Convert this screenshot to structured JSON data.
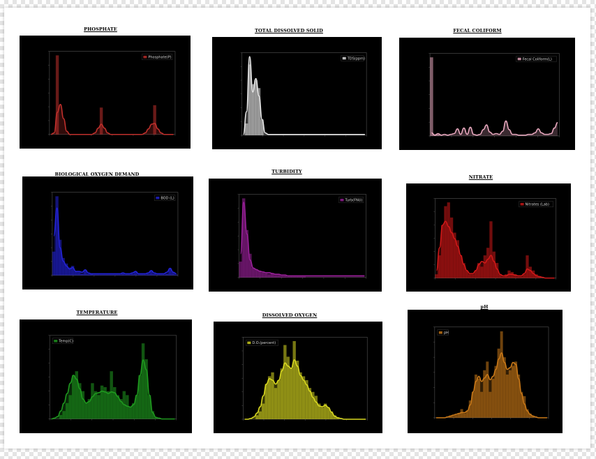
{
  "chart_data": [
    {
      "id": "phosphate",
      "type": "histogram-kde",
      "title": "PHOSPHATE",
      "legend": "Phosphate(P)",
      "legend_pos": "top-right",
      "color": "#c0302c",
      "x": [
        0,
        1,
        2,
        3,
        4,
        5,
        6,
        7,
        8,
        9,
        10,
        11,
        12,
        13,
        14,
        15,
        16,
        17,
        18,
        19,
        20,
        21,
        22,
        23,
        24,
        25,
        26,
        27,
        28,
        29,
        30,
        31,
        32,
        33,
        34,
        35,
        36,
        37,
        38,
        39
      ],
      "bars": [
        0,
        0,
        1.0,
        0,
        0,
        0,
        0,
        0,
        0,
        0,
        0,
        0,
        0,
        0,
        0,
        0,
        0.34,
        0,
        0,
        0,
        0,
        0,
        0,
        0,
        0,
        0,
        0,
        0,
        0,
        0,
        0,
        0,
        0,
        0.37,
        0,
        0,
        0,
        0,
        0,
        0
      ],
      "kde": [
        0,
        0.02,
        0.28,
        0.38,
        0.2,
        0.04,
        0,
        0,
        0,
        0,
        0,
        0,
        0,
        0,
        0.02,
        0.08,
        0.13,
        0.08,
        0.02,
        0,
        0,
        0,
        0,
        0,
        0,
        0,
        0,
        0,
        0,
        0,
        0.02,
        0.07,
        0.13,
        0.14,
        0.07,
        0.02,
        0,
        0,
        0,
        0
      ]
    },
    {
      "id": "tds",
      "type": "histogram-kde",
      "title": "TOTAL DISSOLVED SOLID",
      "legend": "TDS(ppm)",
      "legend_pos": "top-right",
      "color": "#e8e8e8",
      "x": [
        0,
        1,
        2,
        3,
        4,
        5,
        6,
        7,
        8,
        9,
        10,
        11,
        12,
        13,
        14,
        15,
        16,
        17,
        18,
        19,
        20,
        21,
        22,
        23,
        24,
        25,
        26,
        27,
        28,
        29,
        30,
        31,
        32,
        33,
        34,
        35,
        36,
        37,
        38,
        39
      ],
      "bars": [
        0,
        0.15,
        0.9,
        0.65,
        0.7,
        0.6,
        0.2,
        0,
        0,
        0,
        0,
        0,
        0,
        0,
        0,
        0,
        0,
        0,
        0,
        0,
        0,
        0,
        0,
        0,
        0,
        0,
        0,
        0,
        0,
        0,
        0,
        0,
        0,
        0,
        0,
        0,
        0,
        0,
        0,
        0
      ],
      "kde": [
        0.01,
        0.3,
        1.0,
        0.55,
        0.72,
        0.5,
        0.2,
        0.03,
        0.01,
        0.01,
        0.01,
        0.01,
        0.01,
        0.01,
        0.01,
        0.01,
        0.01,
        0.01,
        0.01,
        0.01,
        0.01,
        0.01,
        0.01,
        0.01,
        0.01,
        0.01,
        0.01,
        0.01,
        0.01,
        0.01,
        0.01,
        0.01,
        0.01,
        0.01,
        0.01,
        0.01,
        0.01,
        0.01,
        0.01,
        0.01
      ]
    },
    {
      "id": "fecal",
      "type": "histogram-kde",
      "title": "FECAL COLIFORM",
      "legend": "Fecal Coliform(L)",
      "legend_pos": "top-right",
      "color": "#e8a8be",
      "x": [
        0,
        1,
        2,
        3,
        4,
        5,
        6,
        7,
        8,
        9,
        10,
        11,
        12,
        13,
        14,
        15,
        16,
        17,
        18,
        19,
        20,
        21,
        22,
        23,
        24,
        25,
        26,
        27,
        28,
        29,
        30,
        31,
        32,
        33,
        34,
        35,
        36,
        37,
        38,
        39
      ],
      "bars": [
        1.0,
        0.02,
        0.02,
        0,
        0,
        0,
        0,
        0,
        0,
        0,
        0,
        0,
        0,
        0,
        0,
        0,
        0,
        0,
        0,
        0,
        0,
        0,
        0,
        0,
        0,
        0,
        0,
        0,
        0,
        0,
        0,
        0,
        0,
        0,
        0,
        0,
        0,
        0,
        0,
        0
      ],
      "kde": [
        0.04,
        0.01,
        0.03,
        0.01,
        0.02,
        0.01,
        0.02,
        0.03,
        0.09,
        0.02,
        0.1,
        0.02,
        0.11,
        0.02,
        0.01,
        0.02,
        0.08,
        0.14,
        0.05,
        0.02,
        0.03,
        0.02,
        0.06,
        0.19,
        0.08,
        0.02,
        0.02,
        0.01,
        0.01,
        0.01,
        0.02,
        0.02,
        0.04,
        0.09,
        0.04,
        0.02,
        0.02,
        0.03,
        0.1,
        0.17
      ]
    },
    {
      "id": "bod",
      "type": "histogram-kde",
      "title": "BIOLOGICAL OXYGEN DEMAND",
      "legend": "BOD (L)",
      "legend_pos": "top-right",
      "color": "#2323d8",
      "x": [
        0,
        1,
        2,
        3,
        4,
        5,
        6,
        7,
        8,
        9,
        10,
        11,
        12,
        13,
        14,
        15,
        16,
        17,
        18,
        19,
        20,
        21,
        22,
        23,
        24,
        25,
        26,
        27,
        28,
        29,
        30,
        31,
        32,
        33,
        34,
        35,
        36,
        37,
        38,
        39
      ],
      "bars": [
        0.3,
        1.0,
        0.45,
        0.22,
        0.15,
        0.1,
        0.12,
        0.05,
        0.04,
        0.02,
        0.06,
        0.02,
        0.02,
        0.01,
        0.01,
        0.01,
        0.01,
        0.01,
        0.01,
        0.01,
        0.01,
        0.01,
        0.02,
        0.01,
        0.01,
        0.02,
        0.04,
        0.01,
        0.01,
        0.01,
        0.02,
        0.05,
        0.02,
        0.01,
        0.01,
        0.01,
        0.02,
        0.09,
        0.04,
        0.01
      ],
      "kde": [
        0.5,
        0.85,
        0.35,
        0.18,
        0.12,
        0.08,
        0.1,
        0.05,
        0.05,
        0.04,
        0.07,
        0.03,
        0.02,
        0.02,
        0.02,
        0.02,
        0.02,
        0.02,
        0.02,
        0.02,
        0.02,
        0.02,
        0.03,
        0.02,
        0.02,
        0.03,
        0.05,
        0.02,
        0.02,
        0.02,
        0.03,
        0.06,
        0.03,
        0.02,
        0.02,
        0.02,
        0.04,
        0.09,
        0.04,
        0.02
      ]
    },
    {
      "id": "turbidity",
      "type": "histogram-kde",
      "title": "TURBIDITY",
      "legend": "Turb(FNU)",
      "legend_pos": "top-right",
      "color": "#9a209a",
      "x": [
        0,
        1,
        2,
        3,
        4,
        5,
        6,
        7,
        8,
        9,
        10,
        11,
        12,
        13,
        14,
        15,
        16,
        17,
        18,
        19,
        20,
        21,
        22,
        23,
        24,
        25,
        26,
        27,
        28,
        29,
        30,
        31,
        32,
        33,
        34,
        35,
        36,
        37,
        38,
        39
      ],
      "bars": [
        0.2,
        1.0,
        0.6,
        0.3,
        0.12,
        0.1,
        0.08,
        0.06,
        0.05,
        0.04,
        0.05,
        0.03,
        0.03,
        0.02,
        0.02,
        0.01,
        0.01,
        0.01,
        0.01,
        0.01,
        0.01,
        0,
        0,
        0,
        0,
        0,
        0,
        0,
        0,
        0,
        0,
        0,
        0,
        0,
        0,
        0,
        0,
        0,
        0,
        0
      ],
      "kde": [
        0.3,
        0.95,
        0.55,
        0.22,
        0.12,
        0.1,
        0.08,
        0.07,
        0.06,
        0.06,
        0.05,
        0.04,
        0.04,
        0.03,
        0.03,
        0.02,
        0.02,
        0.02,
        0.02,
        0.02,
        0.02,
        0.02,
        0.02,
        0.02,
        0.02,
        0.02,
        0.02,
        0.02,
        0.02,
        0.02,
        0.02,
        0.02,
        0.02,
        0.02,
        0.02,
        0.02,
        0.02,
        0.02,
        0.02,
        0.02
      ]
    },
    {
      "id": "nitrate",
      "type": "histogram-kde",
      "title": "NITRATE",
      "legend": "Nitrates (Lab)",
      "legend_pos": "top-right",
      "color": "#d01818",
      "x": [
        0,
        1,
        2,
        3,
        4,
        5,
        6,
        7,
        8,
        9,
        10,
        11,
        12,
        13,
        14,
        15,
        16,
        17,
        18,
        19,
        20,
        21,
        22,
        23,
        24,
        25,
        26,
        27,
        28,
        29,
        30,
        31,
        32,
        33,
        34,
        35,
        36,
        37,
        38,
        39
      ],
      "bars": [
        0.05,
        0.3,
        0.7,
        0.95,
        1.0,
        0.8,
        0.6,
        0.5,
        0.3,
        0.2,
        0.1,
        0.05,
        0.05,
        0.1,
        0.2,
        0.15,
        0.3,
        0.4,
        0.75,
        0.35,
        0.2,
        0.05,
        0.02,
        0.05,
        0.1,
        0.08,
        0.05,
        0.02,
        0.02,
        0.05,
        0.3,
        0.15,
        0.1,
        0.05,
        0.02,
        0,
        0,
        0,
        0,
        0
      ],
      "kde": [
        0.1,
        0.4,
        0.7,
        0.75,
        0.68,
        0.6,
        0.52,
        0.42,
        0.3,
        0.18,
        0.1,
        0.06,
        0.06,
        0.1,
        0.18,
        0.22,
        0.2,
        0.25,
        0.3,
        0.22,
        0.12,
        0.05,
        0.03,
        0.03,
        0.05,
        0.05,
        0.04,
        0.03,
        0.03,
        0.06,
        0.12,
        0.1,
        0.06,
        0.03,
        0.02,
        0.01,
        0,
        0,
        0,
        0
      ]
    },
    {
      "id": "temperature",
      "type": "histogram-kde",
      "title": "TEMPERATURE",
      "legend": "Temp(C)",
      "legend_pos": "top-left",
      "color": "#1f9a1f",
      "x": [
        0,
        1,
        2,
        3,
        4,
        5,
        6,
        7,
        8,
        9,
        10,
        11,
        12,
        13,
        14,
        15,
        16,
        17,
        18,
        19,
        20,
        21,
        22,
        23,
        24,
        25,
        26,
        27,
        28,
        29,
        30,
        31,
        32,
        33,
        34,
        35,
        36,
        37,
        38,
        39
      ],
      "bars": [
        0,
        0,
        0,
        0.05,
        0.1,
        0.2,
        0.3,
        0.55,
        0.6,
        0.45,
        0.35,
        0.2,
        0.25,
        0.45,
        0.35,
        0.3,
        0.42,
        0.4,
        0.35,
        0.6,
        0.4,
        0.3,
        0.25,
        0.35,
        0.3,
        0.15,
        0.2,
        0.3,
        0.55,
        0.95,
        0.75,
        0.3,
        0.1,
        0.02,
        0,
        0,
        0,
        0,
        0,
        0
      ],
      "kde": [
        0,
        0.01,
        0.03,
        0.1,
        0.2,
        0.32,
        0.45,
        0.55,
        0.5,
        0.38,
        0.25,
        0.2,
        0.22,
        0.28,
        0.32,
        0.33,
        0.35,
        0.34,
        0.32,
        0.34,
        0.33,
        0.28,
        0.22,
        0.18,
        0.16,
        0.15,
        0.18,
        0.3,
        0.55,
        0.74,
        0.62,
        0.3,
        0.08,
        0.02,
        0.01,
        0,
        0,
        0,
        0,
        0
      ]
    },
    {
      "id": "do",
      "type": "histogram-kde",
      "title": "DISSOLVED OXYGEN",
      "legend": "D.O.(percent)",
      "legend_pos": "top-left",
      "color": "#d8d820",
      "x": [
        0,
        1,
        2,
        3,
        4,
        5,
        6,
        7,
        8,
        9,
        10,
        11,
        12,
        13,
        14,
        15,
        16,
        17,
        18,
        19,
        20,
        21,
        22,
        23,
        24,
        25,
        26,
        27,
        28,
        29,
        30,
        31,
        32,
        33,
        34,
        35,
        36,
        37,
        38,
        39
      ],
      "bars": [
        0,
        0,
        0,
        0,
        0.05,
        0.1,
        0.2,
        0.45,
        0.55,
        0.6,
        0.4,
        0.5,
        0.65,
        0.95,
        0.8,
        0.65,
        1.0,
        0.75,
        0.6,
        0.55,
        0.5,
        0.4,
        0.35,
        0.3,
        0.2,
        0.15,
        0.2,
        0.15,
        0.1,
        0.05,
        0.02,
        0,
        0,
        0,
        0,
        0,
        0,
        0,
        0,
        0
      ],
      "kde": [
        0,
        0,
        0.01,
        0.03,
        0.08,
        0.16,
        0.3,
        0.45,
        0.52,
        0.5,
        0.45,
        0.5,
        0.62,
        0.72,
        0.68,
        0.65,
        0.76,
        0.68,
        0.56,
        0.5,
        0.44,
        0.36,
        0.28,
        0.22,
        0.17,
        0.16,
        0.18,
        0.15,
        0.09,
        0.04,
        0.02,
        0.01,
        0,
        0,
        0,
        0,
        0,
        0,
        0,
        0
      ]
    },
    {
      "id": "ph",
      "type": "histogram-kde",
      "title": "pH",
      "legend": "pH",
      "legend_pos": "top-left",
      "color": "#c87818",
      "x": [
        0,
        1,
        2,
        3,
        4,
        5,
        6,
        7,
        8,
        9,
        10,
        11,
        12,
        13,
        14,
        15,
        16,
        17,
        18,
        19,
        20,
        21,
        22,
        23,
        24,
        25,
        26,
        27,
        28,
        29,
        30,
        31,
        32,
        33,
        34,
        35,
        36,
        37,
        38,
        39
      ],
      "bars": [
        0,
        0,
        0,
        0,
        0,
        0.02,
        0.02,
        0.03,
        0.05,
        0.1,
        0.05,
        0.08,
        0.2,
        0.3,
        0.5,
        0.45,
        0.3,
        0.55,
        0.65,
        0.3,
        0.45,
        0.6,
        0.8,
        1.0,
        0.7,
        0.5,
        0.55,
        0.6,
        0.65,
        0.5,
        0.3,
        0.25,
        0.1,
        0.05,
        0.02,
        0,
        0,
        0,
        0,
        0
      ],
      "kde": [
        0,
        0,
        0,
        0,
        0.01,
        0.02,
        0.03,
        0.04,
        0.05,
        0.06,
        0.06,
        0.08,
        0.15,
        0.3,
        0.42,
        0.48,
        0.42,
        0.46,
        0.5,
        0.44,
        0.48,
        0.56,
        0.68,
        0.75,
        0.64,
        0.56,
        0.58,
        0.64,
        0.62,
        0.45,
        0.28,
        0.16,
        0.08,
        0.04,
        0.02,
        0.01,
        0,
        0,
        0,
        0
      ]
    }
  ]
}
